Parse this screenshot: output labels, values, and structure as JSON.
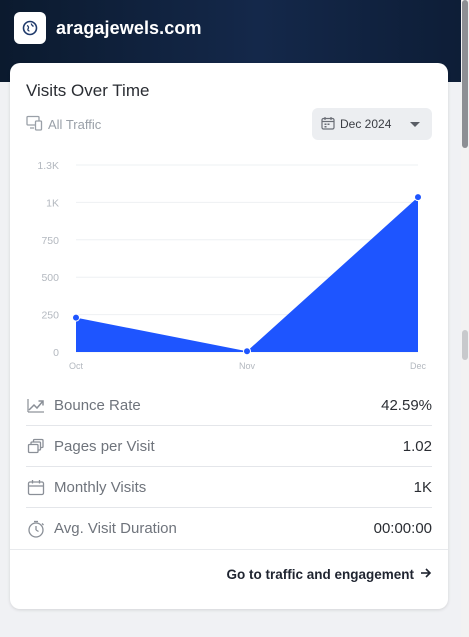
{
  "header": {
    "site_name": "aragajewels.com",
    "icon": "globe-icon"
  },
  "card": {
    "title": "Visits Over Time",
    "traffic_label": "All Traffic",
    "date_select": "Dec 2024"
  },
  "chart_data": {
    "type": "area",
    "categories": [
      "Oct",
      "Nov",
      "Dec"
    ],
    "values": [
      230,
      5,
      1035
    ],
    "y_ticks": [
      "0",
      "250",
      "500",
      "750",
      "1K",
      "1.3K"
    ],
    "ylim": [
      0,
      1250
    ],
    "grid": true,
    "color": "#1e55ff"
  },
  "metrics": [
    {
      "label": "Bounce Rate",
      "value": "42.59%",
      "icon": "trend-icon"
    },
    {
      "label": "Pages per Visit",
      "value": "1.02",
      "icon": "pages-icon"
    },
    {
      "label": "Monthly Visits",
      "value": "1K",
      "icon": "calendar-icon"
    },
    {
      "label": "Avg. Visit Duration",
      "value": "00:00:00",
      "icon": "timer-icon"
    }
  ],
  "footer": {
    "link_label": "Go to traffic and engagement"
  },
  "colors": {
    "accent": "#1e55ff",
    "header_bg": "#0f2240"
  }
}
